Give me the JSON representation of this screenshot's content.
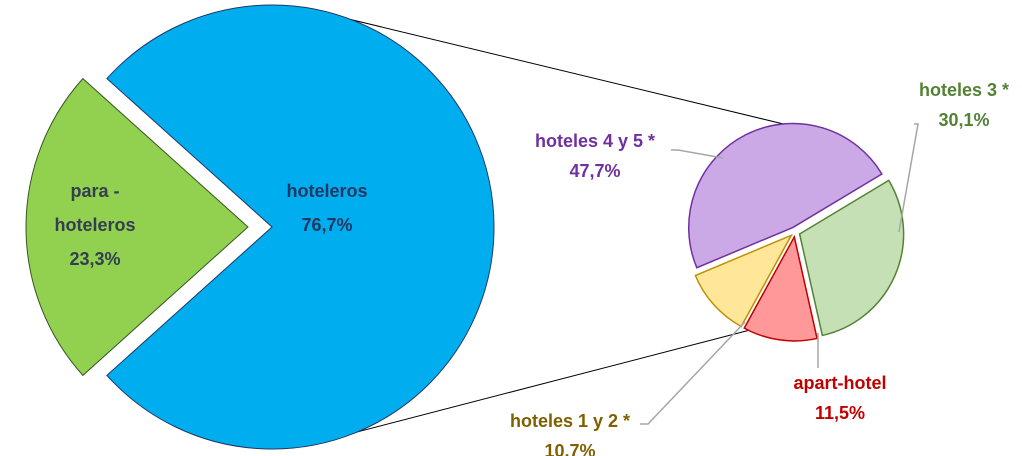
{
  "chart_data": {
    "type": "pie",
    "subtype": "pie-of-pie",
    "main": {
      "slices": [
        {
          "name": "hoteleros",
          "value": 76.7,
          "label_lines": [
            "hoteleros",
            "76,7%"
          ],
          "color": "#00AEEF",
          "stroke": "#1F3864",
          "text_color": "#1F3864"
        },
        {
          "name": "para - hoteleros",
          "value": 23.3,
          "label_lines": [
            "para -",
            "hoteleros",
            "23,3%"
          ],
          "color": "#92D050",
          "stroke": "#375623",
          "text_color": "#333F50"
        }
      ]
    },
    "secondary": {
      "slices": [
        {
          "name": "hoteles 3 *",
          "value": 30.1,
          "label_lines": [
            "hoteles 3 *",
            "30,1%"
          ],
          "color": "#C5E0B4",
          "stroke": "#548235",
          "text_color": "#548235"
        },
        {
          "name": "apart-hotel",
          "value": 11.5,
          "label_lines": [
            "apart-hotel",
            "11,5%"
          ],
          "color": "#FF9999",
          "stroke": "#C00000",
          "text_color": "#C00000"
        },
        {
          "name": "hoteles 1 y 2 *",
          "value": 10.7,
          "label_lines": [
            "hoteles 1 y 2 *",
            "10.7%"
          ],
          "color": "#FFE699",
          "stroke": "#BF9000",
          "text_color": "#7F6000"
        },
        {
          "name": "hoteles 4 y 5 *",
          "value": 47.7,
          "label_lines": [
            "hoteles 4 y 5 *",
            "47,7%"
          ],
          "color": "#CBA8E6",
          "stroke": "#7030A0",
          "text_color": "#7030A0"
        }
      ]
    },
    "connector_color": "#000000",
    "leader_color": "#A6A6A6"
  }
}
